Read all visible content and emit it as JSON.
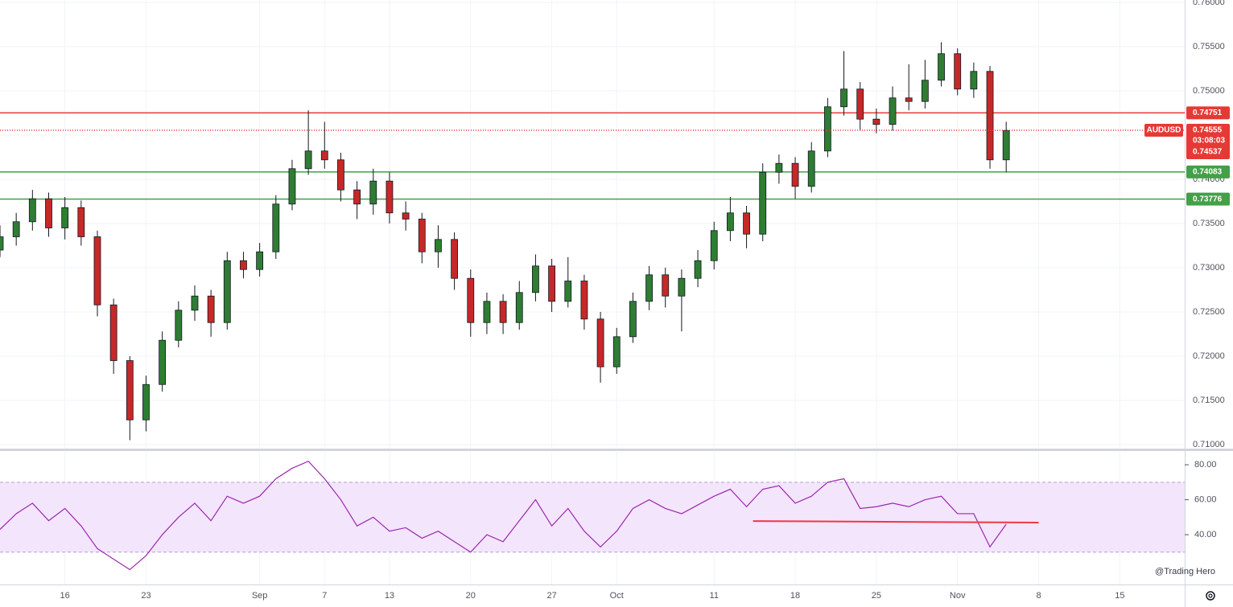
{
  "chart_data": [
    {
      "type": "candlestick",
      "symbol": "AUDUSD",
      "up_color": "#2e7d32",
      "down_color": "#c62828",
      "x": [
        -4,
        -3,
        -2,
        -1,
        0,
        1,
        2,
        3,
        4,
        5,
        6,
        7,
        8,
        9,
        10,
        11,
        12,
        13,
        14,
        15,
        16,
        17,
        18,
        19,
        20,
        21,
        22,
        23,
        24,
        25,
        26,
        27,
        28,
        29,
        30,
        31,
        32,
        33,
        34,
        35,
        36,
        37,
        38,
        39,
        40,
        41,
        42,
        43,
        44,
        45,
        46,
        47,
        48,
        49,
        50,
        51,
        52,
        53,
        54,
        55,
        56,
        57,
        58
      ],
      "open": [
        0.732,
        0.7335,
        0.7352,
        0.7378,
        0.7345,
        0.7368,
        0.7335,
        0.7258,
        0.7195,
        0.7128,
        0.7168,
        0.7218,
        0.7252,
        0.7268,
        0.7238,
        0.7308,
        0.7298,
        0.7318,
        0.7372,
        0.7412,
        0.7432,
        0.7422,
        0.7388,
        0.7372,
        0.7398,
        0.7362,
        0.7355,
        0.7318,
        0.7332,
        0.7288,
        0.7238,
        0.7262,
        0.7238,
        0.7272,
        0.7302,
        0.7262,
        0.7285,
        0.7242,
        0.7188,
        0.7222,
        0.7262,
        0.7292,
        0.7268,
        0.7288,
        0.7308,
        0.7342,
        0.7362,
        0.7338,
        0.7408,
        0.7418,
        0.7392,
        0.7432,
        0.7482,
        0.7502,
        0.7468,
        0.7462,
        0.7492,
        0.7488,
        0.7512,
        0.7542,
        0.7502,
        0.7522,
        0.7422
      ],
      "high": [
        0.7348,
        0.7362,
        0.7388,
        0.7385,
        0.738,
        0.7376,
        0.7342,
        0.7265,
        0.72,
        0.7178,
        0.7228,
        0.7262,
        0.728,
        0.7275,
        0.7318,
        0.7318,
        0.7328,
        0.7382,
        0.7422,
        0.7478,
        0.7465,
        0.743,
        0.7398,
        0.7412,
        0.7408,
        0.7375,
        0.7362,
        0.7348,
        0.734,
        0.7298,
        0.7272,
        0.727,
        0.7285,
        0.7315,
        0.731,
        0.7312,
        0.7292,
        0.725,
        0.7232,
        0.7272,
        0.7302,
        0.73,
        0.7298,
        0.732,
        0.7352,
        0.738,
        0.737,
        0.7418,
        0.7428,
        0.7425,
        0.7442,
        0.7492,
        0.7545,
        0.751,
        0.748,
        0.7505,
        0.753,
        0.7535,
        0.7555,
        0.7548,
        0.7532,
        0.7528,
        0.7465
      ],
      "low": [
        0.7312,
        0.7325,
        0.7342,
        0.7335,
        0.7332,
        0.7325,
        0.7245,
        0.718,
        0.7105,
        0.7115,
        0.716,
        0.721,
        0.724,
        0.7222,
        0.723,
        0.7288,
        0.729,
        0.731,
        0.7365,
        0.7405,
        0.7412,
        0.7375,
        0.7355,
        0.736,
        0.735,
        0.7342,
        0.7305,
        0.73,
        0.7275,
        0.7222,
        0.7225,
        0.7225,
        0.723,
        0.7262,
        0.725,
        0.7255,
        0.723,
        0.717,
        0.718,
        0.7215,
        0.7252,
        0.7255,
        0.7228,
        0.7278,
        0.7298,
        0.733,
        0.7322,
        0.733,
        0.7395,
        0.7378,
        0.7385,
        0.7425,
        0.7472,
        0.7455,
        0.7452,
        0.7455,
        0.7478,
        0.748,
        0.7505,
        0.7495,
        0.7492,
        0.7412,
        0.7408
      ],
      "close": [
        0.7335,
        0.7352,
        0.7378,
        0.7345,
        0.7368,
        0.7335,
        0.7258,
        0.7195,
        0.7128,
        0.7168,
        0.7218,
        0.7252,
        0.7268,
        0.7238,
        0.7308,
        0.7298,
        0.7318,
        0.7372,
        0.7412,
        0.7432,
        0.7422,
        0.7388,
        0.7372,
        0.7398,
        0.7362,
        0.7355,
        0.7318,
        0.7332,
        0.7288,
        0.7238,
        0.7262,
        0.7238,
        0.7272,
        0.7302,
        0.7262,
        0.7285,
        0.7242,
        0.7188,
        0.7222,
        0.7262,
        0.7292,
        0.7268,
        0.7288,
        0.7308,
        0.7342,
        0.7362,
        0.7338,
        0.7408,
        0.7418,
        0.7392,
        0.7432,
        0.7482,
        0.7502,
        0.7468,
        0.7462,
        0.7492,
        0.7488,
        0.7512,
        0.7542,
        0.7502,
        0.7522,
        0.7422,
        0.7455
      ],
      "xlim": [
        -4,
        69
      ],
      "xticks": [
        {
          "value": 0,
          "label": "16"
        },
        {
          "value": 5,
          "label": "23"
        },
        {
          "value": 12,
          "label": "Sep"
        },
        {
          "value": 16,
          "label": "7"
        },
        {
          "value": 20,
          "label": "13"
        },
        {
          "value": 25,
          "label": "20"
        },
        {
          "value": 30,
          "label": "27"
        },
        {
          "value": 34,
          "label": "Oct"
        },
        {
          "value": 40,
          "label": "11"
        },
        {
          "value": 45,
          "label": "18"
        },
        {
          "value": 50,
          "label": "25"
        },
        {
          "value": 55,
          "label": "Nov"
        },
        {
          "value": 60,
          "label": "8"
        },
        {
          "value": 65,
          "label": "15"
        }
      ],
      "ylim": [
        0.70964,
        0.76027
      ],
      "yticks": [
        {
          "value": 0.71,
          "label": "0.71000"
        },
        {
          "value": 0.715,
          "label": "0.71500"
        },
        {
          "value": 0.72,
          "label": "0.72000"
        },
        {
          "value": 0.725,
          "label": "0.72500"
        },
        {
          "value": 0.73,
          "label": "0.73000"
        },
        {
          "value": 0.735,
          "label": "0.73500"
        },
        {
          "value": 0.74,
          "label": "0.74000"
        },
        {
          "value": 0.745,
          "label": "0.74500"
        },
        {
          "value": 0.75,
          "label": "0.75000"
        },
        {
          "value": 0.755,
          "label": "0.75500"
        },
        {
          "value": 0.76,
          "label": "0.76000"
        }
      ],
      "grid": true,
      "levels": [
        {
          "value": 0.74751,
          "color": "#e53935"
        },
        {
          "value": 0.74083,
          "color": "#43a047"
        },
        {
          "value": 0.73776,
          "color": "#43a047"
        }
      ],
      "last_price": 0.74555,
      "countdown": "03:08:03",
      "bid_price": 0.74537,
      "last_color": "#e53935"
    },
    {
      "type": "line",
      "color": "#9c27b0",
      "values": [
        43,
        52,
        58,
        48,
        55,
        45,
        32,
        26,
        20,
        28,
        40,
        50,
        58,
        48,
        62,
        58,
        62,
        72,
        78,
        82,
        72,
        60,
        45,
        50,
        42,
        44,
        38,
        42,
        36,
        30,
        40,
        36,
        48,
        60,
        45,
        55,
        42,
        33,
        42,
        55,
        60,
        55,
        52,
        57,
        62,
        66,
        56,
        66,
        68,
        58,
        62,
        70,
        72,
        55,
        56,
        58,
        56,
        60,
        62,
        52,
        52,
        33,
        46
      ],
      "ylim": [
        11.5,
        87.4
      ],
      "yticks": [
        {
          "value": 40,
          "label": "40.00"
        },
        {
          "value": 60,
          "label": "60.00"
        },
        {
          "value": 80,
          "label": "80.00"
        }
      ],
      "band": [
        30,
        70
      ],
      "band_color": "#f3e5fc",
      "trendline": {
        "x": [
          42.4,
          60
        ],
        "values": [
          47.8,
          46.9
        ],
        "color": "#f23645"
      }
    },
    {
      "type": "watermark",
      "text": "@Trading Hero"
    }
  ]
}
